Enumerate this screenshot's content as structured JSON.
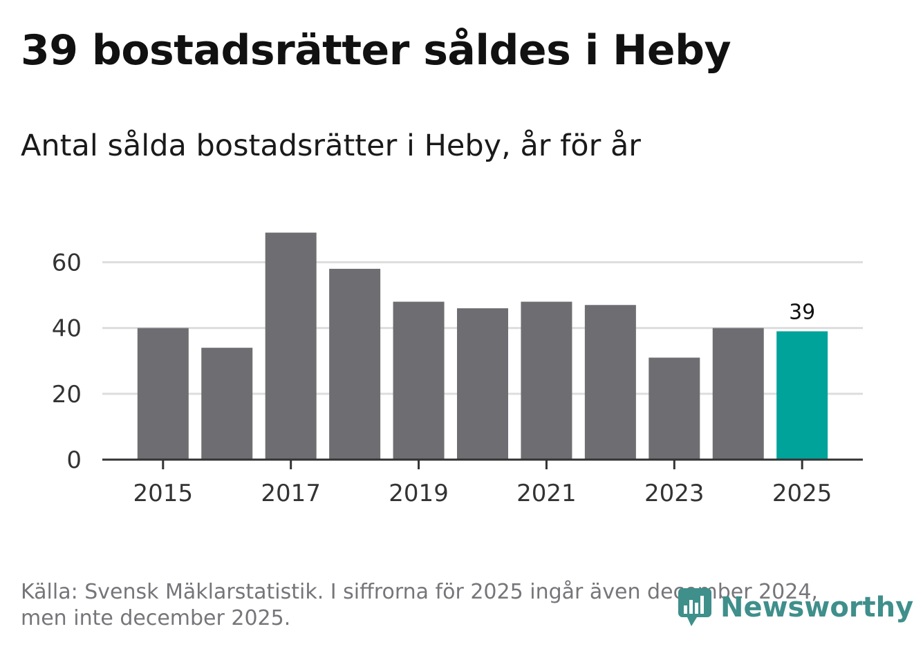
{
  "header": {
    "title": "39 bostadsrätter såldes i Heby",
    "subtitle": "Antal sålda bostadsrätter i Heby, år för år"
  },
  "footer": {
    "source": "Källa: Svensk Mäklarstatistik. I siffrorna för 2025 ingår även december 2024, men inte december 2025.",
    "brand": "Newsworthy"
  },
  "colors": {
    "bar": "#6e6d72",
    "highlight": "#00a39a",
    "grid": "#dddddd",
    "axis": "#333333",
    "text": "#333333",
    "brand": "#3f8f8b"
  },
  "chart_data": {
    "type": "bar",
    "title": "Antal sålda bostadsrätter i Heby, år för år",
    "xlabel": "",
    "ylabel": "",
    "categories": [
      "2015",
      "2016",
      "2017",
      "2018",
      "2019",
      "2020",
      "2021",
      "2022",
      "2023",
      "2024",
      "2025"
    ],
    "values": [
      40,
      34,
      69,
      58,
      48,
      46,
      48,
      47,
      31,
      40,
      39
    ],
    "highlight_index": 10,
    "data_labels": [
      {
        "index": 10,
        "text": "39"
      }
    ],
    "x_tick_labels": [
      "2015",
      "2017",
      "2019",
      "2021",
      "2023",
      "2025"
    ],
    "y_ticks": [
      0,
      20,
      40,
      60
    ],
    "y_tick_labels": [
      "0",
      "20",
      "40",
      "60"
    ],
    "ylim": [
      0,
      70
    ],
    "grid": true
  }
}
